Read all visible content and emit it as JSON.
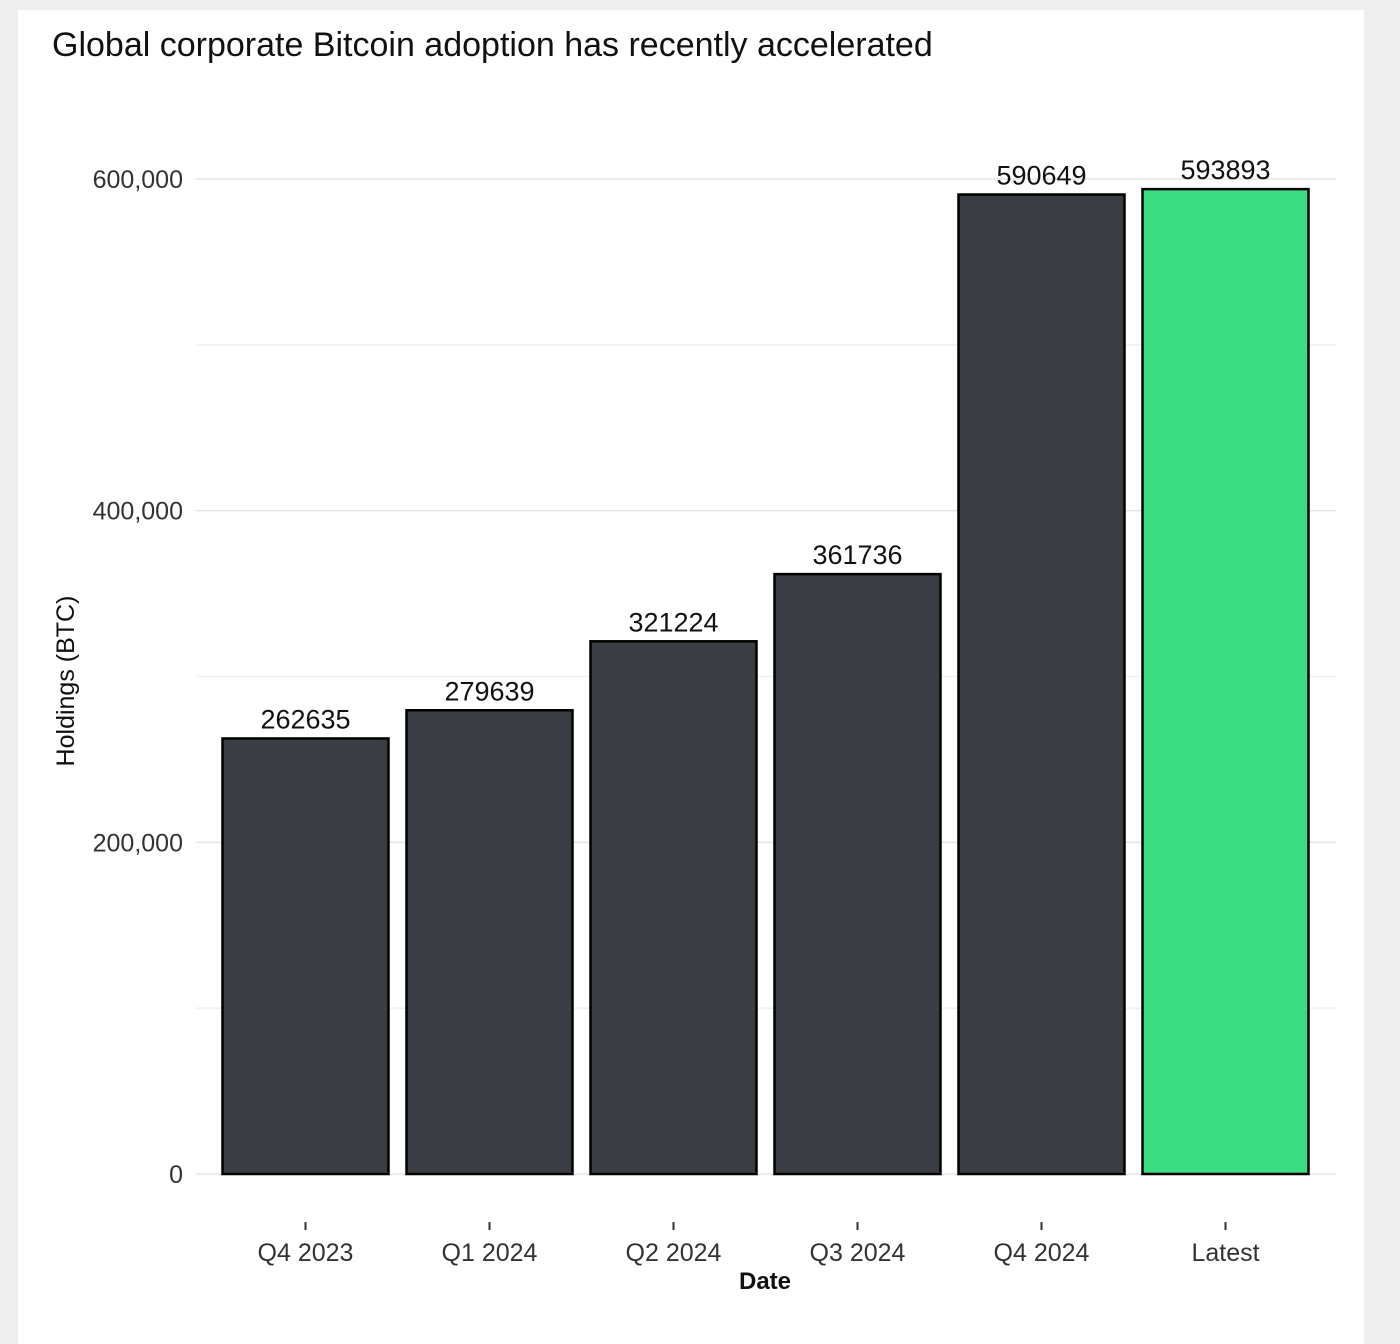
{
  "chart_data": {
    "type": "bar",
    "title": "Global corporate Bitcoin adoption has recently accelerated",
    "xlabel": "Date",
    "ylabel": "Holdings (BTC)",
    "categories": [
      "Q4 2023",
      "Q1 2024",
      "Q2 2024",
      "Q3 2024",
      "Q4 2024",
      "Latest"
    ],
    "values": [
      262635,
      279639,
      321224,
      361736,
      590649,
      593893
    ],
    "data_labels": [
      "262635",
      "279639",
      "321224",
      "361736",
      "590649",
      "593893"
    ],
    "ylim": [
      0,
      600000
    ],
    "yticks": [
      0,
      200000,
      400000,
      600000
    ],
    "ytick_labels": [
      "0",
      "200,000",
      "400,000",
      "600,000"
    ],
    "grid": true,
    "colors": {
      "bar": "#3a3d41",
      "highlight": "#3cdc82",
      "bar_outline": "#000000",
      "grid_major": "#e6e6e6",
      "grid_minor": "#f1f1f1"
    },
    "highlight_category": "Latest"
  }
}
